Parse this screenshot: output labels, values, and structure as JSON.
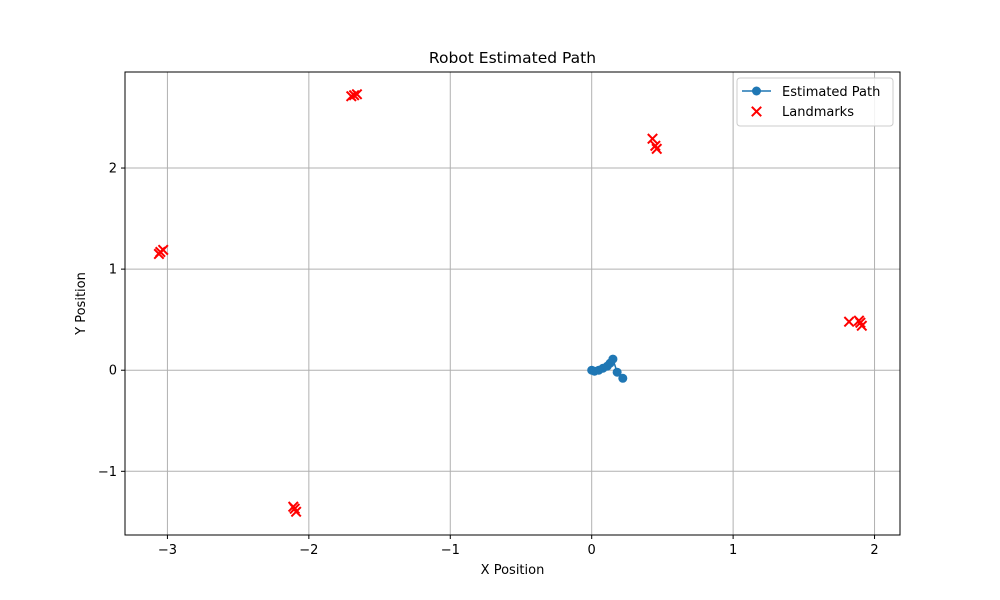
{
  "chart_data": {
    "type": "scatter",
    "title": "Robot Estimated Path",
    "xlabel": "X Position",
    "ylabel": "Y Position",
    "xlim": [
      -3.3,
      2.18
    ],
    "ylim": [
      -1.63,
      2.95
    ],
    "xticks": [
      -3,
      -2,
      -1,
      0,
      1,
      2
    ],
    "yticks": [
      -1,
      0,
      1,
      2
    ],
    "xtick_labels": [
      "−3",
      "−2",
      "−1",
      "0",
      "1",
      "2"
    ],
    "ytick_labels": [
      "−1",
      "0",
      "1",
      "2"
    ],
    "grid": true,
    "legend_position": "top-right",
    "series": [
      {
        "name": "Estimated Path",
        "kind": "line-markers",
        "color": "#1f77b4",
        "x": [
          0.0,
          0.02,
          0.05,
          0.08,
          0.11,
          0.13,
          0.15,
          0.18,
          0.22
        ],
        "y": [
          0.0,
          -0.01,
          0.0,
          0.02,
          0.04,
          0.07,
          0.11,
          -0.02,
          -0.08
        ]
      },
      {
        "name": "Landmarks",
        "kind": "scatter-x",
        "color": "#ff0000",
        "x": [
          -1.7,
          -1.66,
          -1.68,
          -3.06,
          -3.03,
          -3.05,
          -2.11,
          -2.1,
          -2.09,
          0.43,
          0.45,
          0.46,
          1.82,
          1.89,
          1.91,
          1.9
        ],
        "y": [
          2.71,
          2.73,
          2.72,
          1.15,
          1.19,
          1.17,
          -1.35,
          -1.37,
          -1.4,
          2.29,
          2.22,
          2.19,
          0.48,
          0.49,
          0.44,
          0.47
        ]
      }
    ]
  }
}
